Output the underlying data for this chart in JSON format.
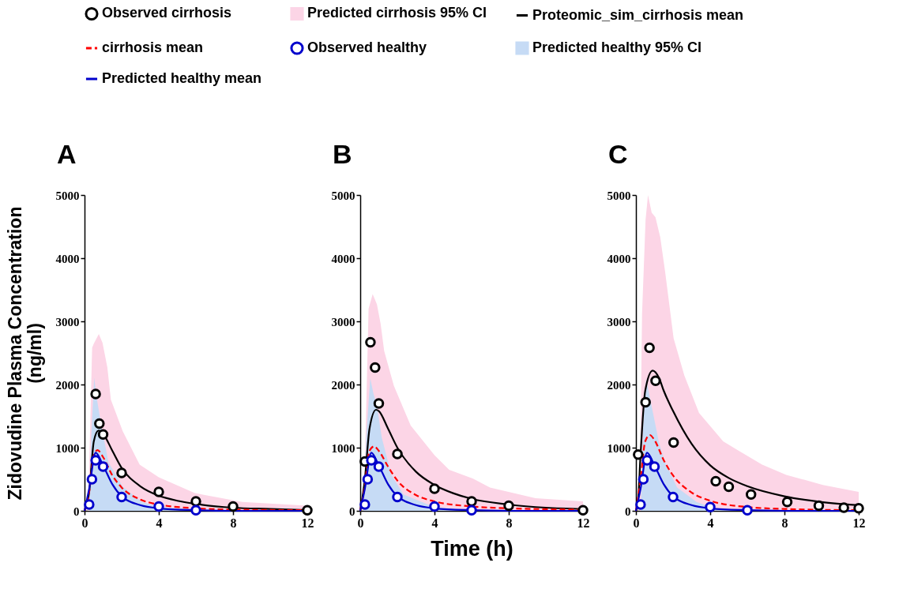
{
  "chart_data": [
    {
      "type": "line",
      "title": "A",
      "ylabel": "Zidovudine Plasma Concentration\n(ng/ml)",
      "xlim": [
        0,
        12
      ],
      "xticks": [
        0,
        4,
        8,
        12
      ],
      "ylim": [
        0,
        5000
      ],
      "yticks": [
        0,
        1000,
        2000,
        3000,
        4000,
        5000
      ],
      "grid": false,
      "legend": "top",
      "series": [
        {
          "name": "Observed cirrhosis",
          "type": "scatter",
          "marker": "circle",
          "color": "#000000",
          "x": [
            0.6,
            0.8,
            1,
            2,
            4,
            6,
            8,
            12
          ],
          "values": [
            1850,
            1380,
            1210,
            600,
            300,
            150,
            70,
            10
          ]
        },
        {
          "name": "Predicted cirrhosis 95% CI",
          "type": "area",
          "color": "#fcd5e6",
          "x": [
            0.19,
            0.41,
            0.49,
            0.77,
            0.97,
            1.23,
            1.42,
            2.06,
            2.97,
            4,
            5.94,
            8.5,
            12
          ],
          "values": [
            0,
            2580,
            2640,
            2800,
            2660,
            2270,
            1760,
            1260,
            730,
            530,
            280,
            140,
            80
          ]
        },
        {
          "name": "Proteomic_sim_cirrhosis mean",
          "type": "line",
          "line_style": "solid",
          "color": "#000000",
          "x": [
            0,
            0.25,
            0.5,
            0.75,
            1,
            1.5,
            2,
            3,
            4,
            5,
            6,
            8,
            10,
            12
          ],
          "values": [
            0,
            300,
            1100,
            1270,
            1220,
            950,
            680,
            390,
            240,
            160,
            110,
            50,
            30,
            10
          ]
        },
        {
          "name": "cirrhosis mean",
          "type": "line",
          "line_style": "dashed",
          "color": "#ff0000",
          "x": [
            0,
            0.25,
            0.5,
            0.7,
            1,
            1.5,
            2,
            3,
            4,
            6,
            8,
            12
          ],
          "values": [
            0,
            300,
            880,
            960,
            850,
            560,
            370,
            180,
            100,
            40,
            20,
            10
          ]
        },
        {
          "name": "Observed healthy",
          "type": "scatter",
          "marker": "circle",
          "color": "#0000cc",
          "x": [
            0.25,
            0.4,
            0.6,
            1,
            2,
            4,
            6
          ],
          "values": [
            100,
            500,
            800,
            700,
            220,
            70,
            10
          ]
        },
        {
          "name": "Predicted healthy 95% CI",
          "type": "area",
          "color": "#c6dbf5",
          "x": [
            0.26,
            0.36,
            0.52,
            0.65,
            0.9,
            1.29,
            2.06,
            3.1,
            4,
            5.9,
            12
          ],
          "values": [
            0,
            1170,
            2110,
            1800,
            1360,
            770,
            380,
            140,
            60,
            20,
            0
          ]
        },
        {
          "name": "Predicted healthy mean",
          "type": "line",
          "line_style": "solid",
          "color": "#0000cc",
          "x": [
            0,
            0.25,
            0.6,
            1,
            1.5,
            2,
            3,
            4,
            6,
            8,
            12
          ],
          "values": [
            0,
            350,
            920,
            720,
            420,
            230,
            90,
            40,
            10,
            0,
            0
          ]
        }
      ]
    },
    {
      "type": "line",
      "title": "B",
      "xlabel": "Time (h)",
      "xlim": [
        0,
        12
      ],
      "xticks": [
        0,
        4,
        8,
        12
      ],
      "ylim": [
        0,
        5000
      ],
      "yticks": [
        0,
        1000,
        2000,
        3000,
        4000,
        5000
      ],
      "grid": false,
      "series": [
        {
          "type": "scatter",
          "marker": "circle",
          "color": "#000000",
          "x": [
            0.25,
            0.55,
            0.8,
            1,
            2,
            4,
            6,
            8,
            12
          ],
          "values": [
            780,
            2670,
            2270,
            1700,
            900,
            350,
            150,
            80,
            10
          ]
        },
        {
          "type": "area",
          "color": "#fcd5e6",
          "x": [
            0.19,
            0.45,
            0.67,
            0.9,
            1.1,
            1.29,
            1.81,
            2.72,
            4,
            4.79,
            6.08,
            6.99,
            9.44,
            12
          ],
          "values": [
            0,
            3200,
            3430,
            3270,
            2960,
            2530,
            1980,
            1350,
            880,
            650,
            510,
            370,
            200,
            150
          ]
        },
        {
          "type": "line",
          "line_style": "solid",
          "color": "#000000",
          "x": [
            0,
            0.25,
            0.5,
            0.85,
            1,
            1.5,
            2,
            3,
            4,
            5,
            6,
            8,
            10,
            12
          ],
          "values": [
            0,
            500,
            1300,
            1600,
            1580,
            1300,
            1000,
            620,
            410,
            280,
            190,
            100,
            50,
            30
          ]
        },
        {
          "type": "line",
          "line_style": "dashed",
          "color": "#ff0000",
          "x": [
            0,
            0.25,
            0.5,
            0.75,
            1,
            1.5,
            2,
            3,
            4,
            6,
            8,
            12
          ],
          "values": [
            0,
            400,
            950,
            1020,
            950,
            700,
            480,
            250,
            150,
            70,
            40,
            20
          ]
        },
        {
          "type": "scatter",
          "marker": "circle",
          "color": "#0000cc",
          "x": [
            0.25,
            0.4,
            0.6,
            1,
            2,
            4,
            6
          ],
          "values": [
            100,
            500,
            800,
            700,
            220,
            70,
            10
          ]
        },
        {
          "type": "area",
          "color": "#c6dbf5",
          "x": [
            0.19,
            0.32,
            0.54,
            0.71,
            0.9,
            1.16,
            1.68,
            2.33,
            4,
            6,
            12
          ],
          "values": [
            0,
            1160,
            2100,
            1860,
            1670,
            1160,
            570,
            260,
            60,
            10,
            0
          ]
        },
        {
          "type": "line",
          "line_style": "solid",
          "color": "#0000cc",
          "x": [
            0,
            0.25,
            0.6,
            1,
            1.5,
            2,
            3,
            4,
            6,
            8,
            12
          ],
          "values": [
            0,
            350,
            920,
            720,
            420,
            230,
            90,
            40,
            10,
            0,
            0
          ]
        }
      ]
    },
    {
      "type": "line",
      "title": "C",
      "xlim": [
        0,
        12
      ],
      "xticks": [
        0,
        4,
        8,
        12
      ],
      "ylim": [
        0,
        5000
      ],
      "yticks": [
        0,
        1000,
        2000,
        3000,
        4000,
        5000
      ],
      "grid": false,
      "series": [
        {
          "type": "scatter",
          "marker": "circle",
          "color": "#000000",
          "x": [
            0.12,
            0.52,
            0.73,
            1.06,
            2.03,
            4.3,
            5,
            6.2,
            8.15,
            9.85,
            11.2,
            12
          ],
          "values": [
            890,
            1720,
            2580,
            2060,
            1080,
            470,
            380,
            260,
            140,
            80,
            50,
            40
          ]
        },
        {
          "type": "area",
          "color": "#fcd5e6",
          "x": [
            0.2,
            0.33,
            0.52,
            0.65,
            0.85,
            1.05,
            1.31,
            1.57,
            2.03,
            2.61,
            3.4,
            4.7,
            5.49,
            6.8,
            8.1,
            10.07,
            12
          ],
          "values": [
            0,
            3120,
            4610,
            5000,
            4720,
            4650,
            4330,
            3790,
            2730,
            2140,
            1550,
            1100,
            960,
            730,
            570,
            410,
            300
          ]
        },
        {
          "type": "line",
          "line_style": "solid",
          "color": "#000000",
          "x": [
            0,
            0.1,
            0.25,
            0.5,
            0.9,
            1.25,
            1.5,
            2,
            3,
            4,
            5,
            6,
            8,
            10,
            12
          ],
          "values": [
            0,
            100,
            900,
            1900,
            2220,
            2100,
            1900,
            1580,
            1060,
            720,
            520,
            390,
            230,
            140,
            90
          ]
        },
        {
          "type": "line",
          "line_style": "dashed",
          "color": "#ff0000",
          "x": [
            0,
            0.25,
            0.5,
            0.75,
            1,
            1.5,
            2,
            3,
            4,
            6,
            8,
            12
          ],
          "values": [
            0,
            500,
            1100,
            1200,
            1120,
            800,
            560,
            290,
            160,
            60,
            30,
            10
          ]
        },
        {
          "type": "scatter",
          "marker": "circle",
          "color": "#0000cc",
          "x": [
            0.25,
            0.4,
            0.6,
            1,
            2,
            4,
            6
          ],
          "values": [
            100,
            500,
            800,
            700,
            220,
            60,
            10
          ]
        },
        {
          "type": "area",
          "color": "#c6dbf5",
          "x": [
            0.26,
            0.39,
            0.55,
            0.65,
            0.92,
            1.24,
            1.57,
            2.22,
            3.27,
            4.18,
            6.14,
            12
          ],
          "values": [
            0,
            1350,
            2100,
            1940,
            1550,
            1080,
            770,
            370,
            140,
            40,
            10,
            0
          ]
        },
        {
          "type": "line",
          "line_style": "solid",
          "color": "#0000cc",
          "x": [
            0,
            0.25,
            0.6,
            1,
            1.5,
            2,
            3,
            4,
            6,
            8,
            12
          ],
          "values": [
            0,
            350,
            920,
            720,
            420,
            230,
            90,
            40,
            10,
            0,
            0
          ]
        }
      ]
    }
  ]
}
